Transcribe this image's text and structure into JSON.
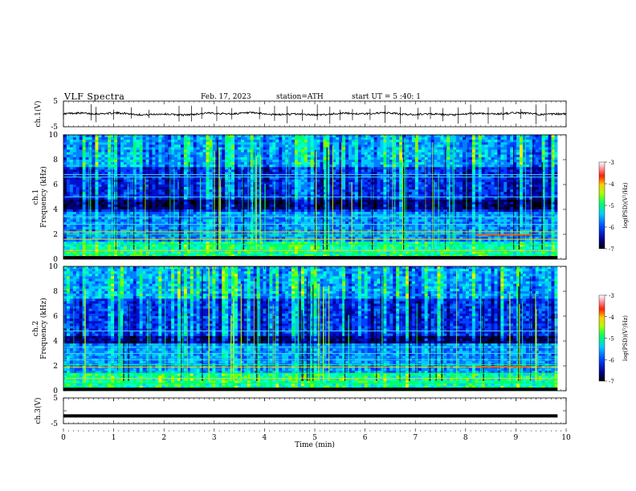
{
  "header": {
    "title": "VLF  Spectra",
    "date": "Feb. 17, 2023",
    "station": "station=ATH",
    "start": "start  UT  =    5  :40:  1"
  },
  "chart_data": [
    {
      "type": "line",
      "name": "ch1-waveform",
      "ylabel": "ch.1(V)",
      "ylim": [
        -5,
        5
      ],
      "yticks": [
        "5",
        "-5"
      ],
      "x_range": [
        0,
        10
      ],
      "baseline": 0.0,
      "spike_times": [
        0.0,
        0.55,
        0.65,
        1.0,
        1.35,
        1.7,
        2.3,
        2.55,
        2.75,
        3.05,
        3.35,
        3.9,
        4.2,
        4.45,
        4.75,
        5.05,
        5.3,
        5.5,
        5.75,
        6.1,
        6.4,
        6.7,
        7.05,
        7.3,
        7.55,
        7.85,
        8.1,
        8.45,
        8.75,
        9.1,
        9.4,
        9.6
      ]
    },
    {
      "type": "heatmap",
      "name": "ch1-spectrogram",
      "ylabel": "ch.1\nFrequency  (kHz)",
      "xlim": [
        0,
        10
      ],
      "ylim": [
        0,
        10
      ],
      "yticks": [
        "0",
        "2",
        "4",
        "6",
        "8",
        "10"
      ],
      "data_x_end": 9.83,
      "colorbar": {
        "label": "log(PSD)(V²/Hz)",
        "range": [
          -7,
          -3
        ],
        "ticks": [
          "-3",
          "-4",
          "-5",
          "-6",
          "-7"
        ]
      },
      "dark_band_khz": [
        4.0,
        4.8
      ],
      "line_khz": [
        0.4,
        0.7,
        1.2,
        1.6,
        2.0,
        2.2,
        2.8,
        3.4,
        5.0,
        6.6,
        6.8
      ]
    },
    {
      "type": "heatmap",
      "name": "ch2-spectrogram",
      "ylabel": "ch.2\nFrequency  (kHz)",
      "xlim": [
        0,
        10
      ],
      "ylim": [
        0,
        10
      ],
      "yticks": [
        "0",
        "2",
        "4",
        "6",
        "8",
        "10"
      ],
      "data_x_end": 9.83,
      "colorbar": {
        "label": "log(PSD)(V²/Hz)",
        "range": [
          -7,
          -3
        ],
        "ticks": [
          "-3",
          "-4",
          "-5",
          "-6",
          "-7"
        ]
      },
      "dark_band_khz": [
        3.8,
        4.4
      ],
      "line_khz": [
        0.6,
        1.0,
        1.4,
        1.9,
        2.1,
        2.5,
        3.0,
        3.5,
        4.8
      ]
    },
    {
      "type": "line",
      "name": "ch3-waveform",
      "ylabel": "ch.3(V)",
      "ylim": [
        -5,
        5
      ],
      "yticks": [
        "5",
        "-5"
      ],
      "x_range": [
        0,
        9.83
      ],
      "baseline": -2.0,
      "xlabel": "Time  (min)",
      "xticks": [
        "0",
        "1",
        "2",
        "3",
        "4",
        "5",
        "6",
        "7",
        "8",
        "9",
        "10"
      ]
    }
  ]
}
